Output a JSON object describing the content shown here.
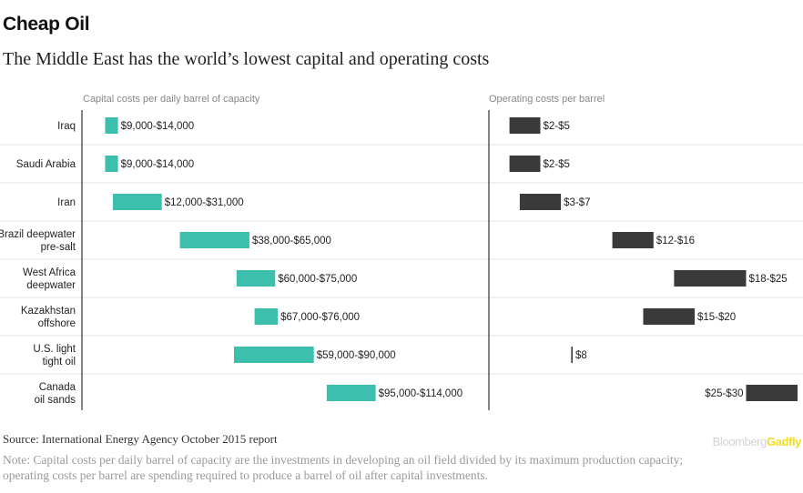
{
  "header": {
    "title": "Cheap Oil",
    "subtitle": "The Middle East has the world’s lowest capital and operating costs"
  },
  "footer": {
    "source": "Source: International Energy Agency October 2015 report",
    "note": "Note: Capital costs per daily barrel of capacity are the investments in developing an oil field divided by its maximum production capacity; operating costs per barrel are spending required to produce a barrel of oil after capital investments.",
    "brand_part1": "Bloomberg",
    "brand_part2": "Gadfly"
  },
  "colors": {
    "capital": "#3dbfae",
    "operating": "#3a3a3a",
    "axis": "#333333",
    "row_divider": "#e4e4e4",
    "category_text": "#222222",
    "panel_title": "#888888"
  },
  "chart_data": {
    "type": "bar",
    "subtype": "floating range bar",
    "categories": [
      [
        "Iraq"
      ],
      [
        "Saudi Arabia"
      ],
      [
        "Iran"
      ],
      [
        "Brazil deepwater",
        "pre-salt"
      ],
      [
        "West Africa",
        "deepwater"
      ],
      [
        "Kazakhstan",
        "offshore"
      ],
      [
        "U.S. light",
        "tight oil"
      ],
      [
        "Canada",
        "oil sands"
      ]
    ],
    "panels": [
      {
        "title": "Capital costs per daily barrel of capacity",
        "series": "capital",
        "domain": [
          0,
          114000
        ],
        "ranges": [
          [
            9000,
            14000
          ],
          [
            9000,
            14000
          ],
          [
            12000,
            31000
          ],
          [
            38000,
            65000
          ],
          [
            60000,
            75000
          ],
          [
            67000,
            76000
          ],
          [
            59000,
            90000
          ],
          [
            95000,
            114000
          ]
        ],
        "labels": [
          "$9,000-$14,000",
          "$9,000-$14,000",
          "$12,000-$31,000",
          "$38,000-$65,000",
          "$60,000-$75,000",
          "$67,000-$76,000",
          "$59,000-$90,000",
          "$95,000-$114,000"
        ]
      },
      {
        "title": "Operating costs per barrel",
        "series": "operating",
        "domain": [
          0,
          30
        ],
        "ranges": [
          [
            2,
            5
          ],
          [
            2,
            5
          ],
          [
            3,
            7
          ],
          [
            12,
            16
          ],
          [
            18,
            25
          ],
          [
            15,
            20
          ],
          [
            8,
            8
          ],
          [
            25,
            30
          ]
        ],
        "labels": [
          "$2-$5",
          "$2-$5",
          "$3-$7",
          "$12-$16",
          "$18-$25",
          "$15-$20",
          "$8",
          "$25-$30"
        ]
      }
    ]
  }
}
